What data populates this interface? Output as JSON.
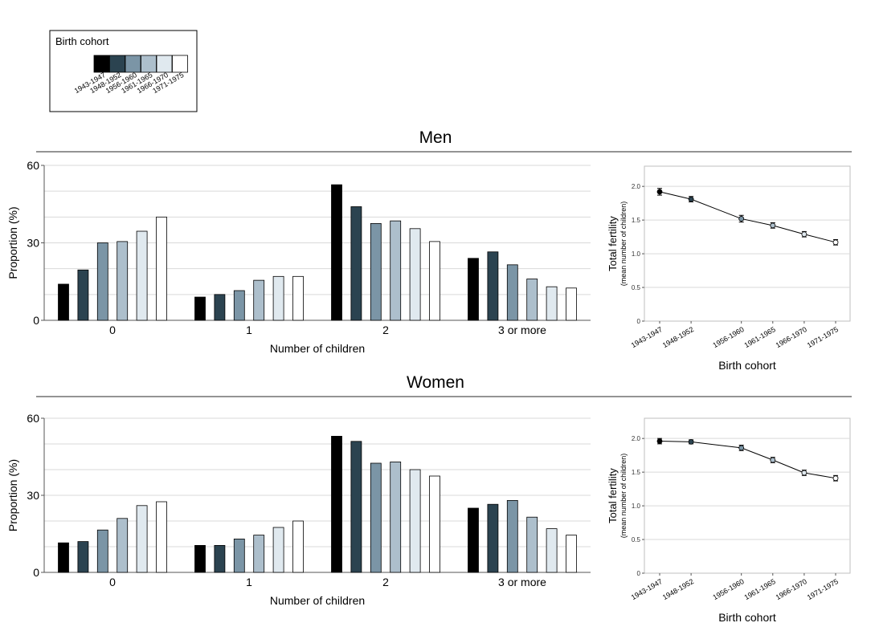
{
  "colors": {
    "cohorts": [
      "#000000",
      "#2b4350",
      "#7b95a6",
      "#adbfcc",
      "#e0e9ef",
      "#ffffff"
    ],
    "grid": "#d9d9d9",
    "axis": "#555555"
  },
  "legend": {
    "title": "Birth cohort",
    "labels": [
      "1943-1947",
      "1948-1952",
      "1956-1960",
      "1961-1965",
      "1966-1970",
      "1971-1975"
    ]
  },
  "chart_data": [
    {
      "id": "men-bars",
      "type": "bar",
      "title": "Men",
      "xlabel": "Number of children",
      "ylabel": "Proportion (%)",
      "categories": [
        "0",
        "1",
        "2",
        "3 or more"
      ],
      "ylim": [
        0,
        60
      ],
      "yticks": [
        "0",
        "30",
        "60"
      ],
      "series": [
        {
          "name": "1943-1947",
          "values": [
            14,
            9,
            52.5,
            24
          ]
        },
        {
          "name": "1948-1952",
          "values": [
            19.5,
            10,
            44,
            26.5
          ]
        },
        {
          "name": "1956-1960",
          "values": [
            30,
            11.5,
            37.5,
            21.5
          ]
        },
        {
          "name": "1961-1965",
          "values": [
            30.5,
            15.5,
            38.5,
            16
          ]
        },
        {
          "name": "1966-1970",
          "values": [
            34.5,
            17,
            35.5,
            13
          ]
        },
        {
          "name": "1971-1975",
          "values": [
            40,
            17,
            30.5,
            12.5
          ]
        }
      ],
      "grid": true
    },
    {
      "id": "men-fertility",
      "type": "line",
      "xlabel": "Birth cohort",
      "ylabel": "Total fertility",
      "ylabel_sub": "(mean number of children)",
      "x": [
        "1943-1947",
        "1948-1952",
        "1956-1960",
        "1961-1965",
        "1966-1970",
        "1971-1975"
      ],
      "y": [
        1.92,
        1.81,
        1.52,
        1.42,
        1.29,
        1.17
      ],
      "err": [
        0.05,
        0.04,
        0.05,
        0.04,
        0.04,
        0.04
      ],
      "ylim": [
        0,
        2.3
      ],
      "yticks": [
        "0",
        "0.5",
        "1.0",
        "1.5",
        "2.0"
      ],
      "grid": true
    },
    {
      "id": "women-bars",
      "type": "bar",
      "title": "Women",
      "xlabel": "Number of children",
      "ylabel": "Proportion (%)",
      "categories": [
        "0",
        "1",
        "2",
        "3 or more"
      ],
      "ylim": [
        0,
        60
      ],
      "yticks": [
        "0",
        "30",
        "60"
      ],
      "series": [
        {
          "name": "1943-1947",
          "values": [
            11.5,
            10.5,
            53,
            25
          ]
        },
        {
          "name": "1948-1952",
          "values": [
            12,
            10.5,
            51,
            26.5
          ]
        },
        {
          "name": "1956-1960",
          "values": [
            16.5,
            13,
            42.5,
            28
          ]
        },
        {
          "name": "1961-1965",
          "values": [
            21,
            14.5,
            43,
            21.5
          ]
        },
        {
          "name": "1966-1970",
          "values": [
            26,
            17.5,
            40,
            17
          ]
        },
        {
          "name": "1971-1975",
          "values": [
            27.5,
            20,
            37.5,
            14.5
          ]
        }
      ],
      "grid": true
    },
    {
      "id": "women-fertility",
      "type": "line",
      "xlabel": "Birth cohort",
      "ylabel": "Total fertility",
      "ylabel_sub": "(mean number of children)",
      "x": [
        "1943-1947",
        "1948-1952",
        "1956-1960",
        "1961-1965",
        "1966-1970",
        "1971-1975"
      ],
      "y": [
        1.96,
        1.95,
        1.86,
        1.68,
        1.49,
        1.41
      ],
      "err": [
        0.04,
        0.03,
        0.04,
        0.04,
        0.04,
        0.04
      ],
      "ylim": [
        0,
        2.3
      ],
      "yticks": [
        "0",
        "0.5",
        "1.0",
        "1.5",
        "2.0"
      ],
      "grid": true
    }
  ]
}
